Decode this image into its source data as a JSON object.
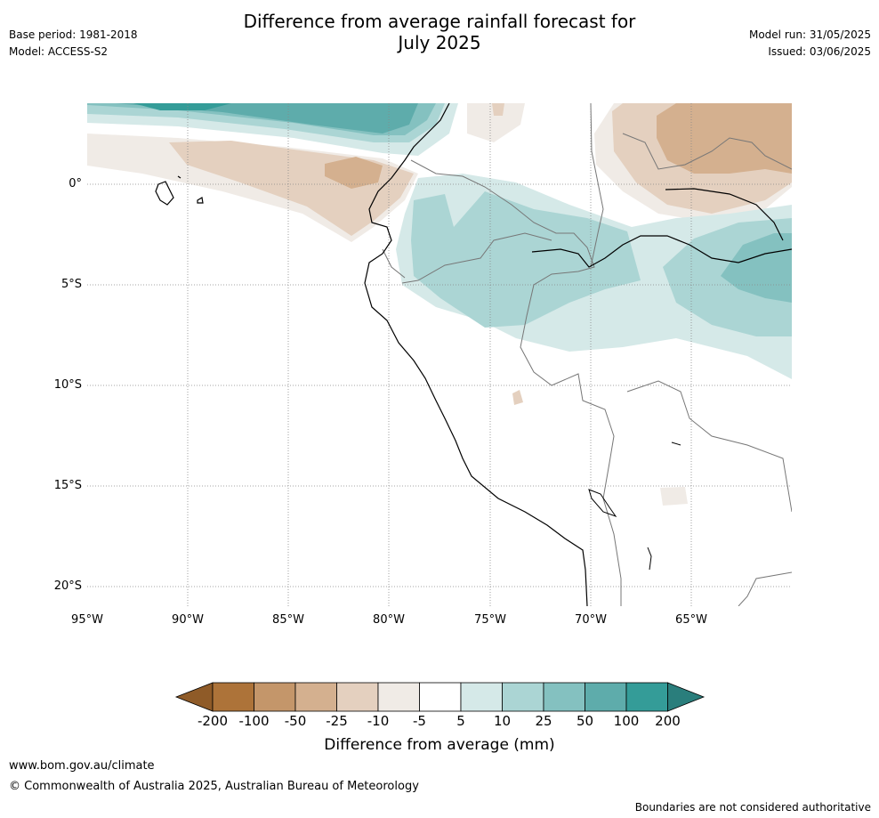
{
  "header": {
    "title_line1": "Difference from average rainfall forecast for",
    "title_line2": "July 2025",
    "base_period": "Base period: 1981-2018",
    "model": "Model: ACCESS-S2",
    "model_run": "Model run: 31/05/2025",
    "issued": "Issued: 03/06/2025"
  },
  "map": {
    "lat_labels": [
      "0°",
      "5°S",
      "10°S",
      "15°S",
      "20°S"
    ],
    "lon_labels": [
      "95°W",
      "90°W",
      "85°W",
      "80°W",
      "75°W",
      "70°W",
      "65°W"
    ]
  },
  "colorbar": {
    "labels": [
      "-200",
      "-100",
      "-50",
      "-25",
      "-10",
      "-5",
      "5",
      "10",
      "25",
      "50",
      "100",
      "200"
    ],
    "colors": [
      "#8f5b28",
      "#ad7339",
      "#c4966a",
      "#d4b08f",
      "#e4d0bf",
      "#f0ebe6",
      "#ffffff",
      "#d5e9e8",
      "#abd5d4",
      "#84c1c0",
      "#5eacab",
      "#349c98",
      "#2a7e7c"
    ],
    "title": "Difference from average (mm)"
  },
  "footer": {
    "url": "www.bom.gov.au/climate",
    "copyright": "© Commonwealth of Australia 2025, Australian Bureau of Meteorology",
    "disclaimer": "Boundaries are not considered authoritative"
  }
}
